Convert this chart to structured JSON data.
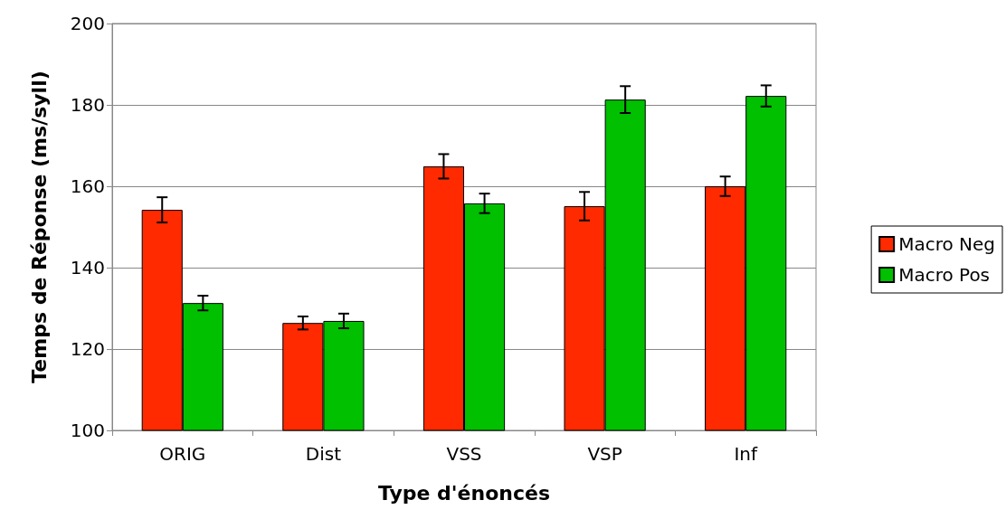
{
  "chart_data": {
    "type": "bar",
    "xlabel": "Type d'énoncés",
    "ylabel": "Temps de Réponse (ms/syll)",
    "categories": [
      "ORIG",
      "Dist",
      "VSS",
      "VSP",
      "Inf"
    ],
    "series": [
      {
        "name": "Macro Neg",
        "color": "#ff2a00",
        "values": [
          154.2,
          126.4,
          164.9,
          155.1,
          160.0
        ],
        "errors": [
          3.1,
          1.6,
          3.0,
          3.5,
          2.4
        ]
      },
      {
        "name": "Macro Pos",
        "color": "#00c000",
        "values": [
          131.3,
          126.9,
          155.8,
          181.3,
          182.2
        ],
        "errors": [
          1.8,
          1.8,
          2.4,
          3.3,
          2.6
        ]
      }
    ],
    "ylim": [
      100,
      200
    ],
    "yticks": [
      100,
      120,
      140,
      160,
      180,
      200
    ],
    "grid": "y",
    "legend": "right"
  }
}
